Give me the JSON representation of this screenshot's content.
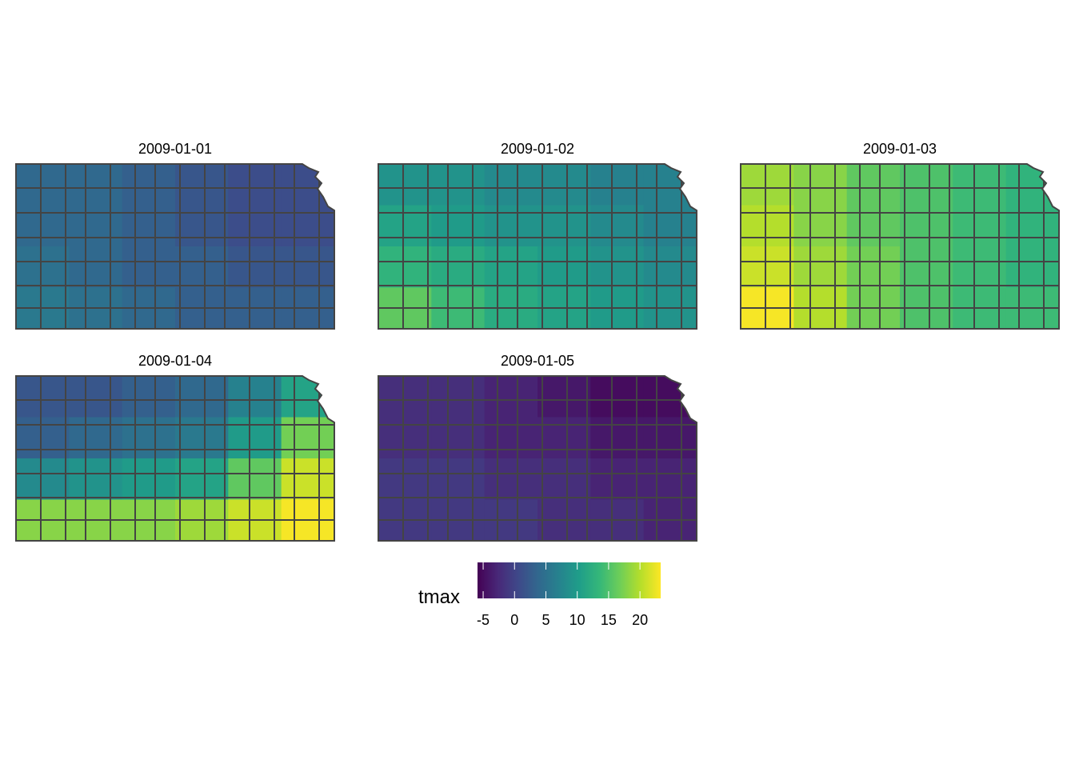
{
  "panels": [
    {
      "title": "2009-01-01",
      "values": [
        [
          4,
          4,
          3,
          2,
          1,
          1
        ],
        [
          4,
          4,
          3,
          2,
          1,
          1
        ],
        [
          5,
          4,
          3,
          3,
          2,
          2
        ],
        [
          6,
          5,
          4,
          3,
          3,
          3
        ]
      ]
    },
    {
      "title": "2009-01-02",
      "values": [
        [
          9,
          9,
          8,
          8,
          7,
          7
        ],
        [
          11,
          10,
          9,
          9,
          8,
          7
        ],
        [
          13,
          12,
          11,
          10,
          9,
          8
        ],
        [
          16,
          14,
          12,
          11,
          10,
          9
        ]
      ]
    },
    {
      "title": "2009-01-03",
      "values": [
        [
          19,
          18,
          16,
          15,
          14,
          13
        ],
        [
          20,
          18,
          16,
          15,
          14,
          13
        ],
        [
          21,
          19,
          17,
          15,
          14,
          13
        ],
        [
          23,
          20,
          17,
          15,
          14,
          14
        ]
      ]
    },
    {
      "title": "2009-01-04",
      "values": [
        [
          2,
          2,
          3,
          4,
          7,
          11
        ],
        [
          3,
          4,
          5,
          6,
          10,
          17
        ],
        [
          8,
          9,
          10,
          11,
          16,
          21
        ],
        [
          18,
          18,
          18,
          19,
          21,
          23
        ]
      ]
    },
    {
      "title": "2009-01-05",
      "values": [
        [
          -2,
          -2,
          -3,
          -4,
          -5,
          -5
        ],
        [
          -2,
          -2,
          -3,
          -3,
          -4,
          -4
        ],
        [
          -1,
          -1,
          -2,
          -2,
          -3,
          -3
        ],
        [
          -1,
          -1,
          -1,
          -2,
          -2,
          -3
        ]
      ]
    }
  ],
  "legend": {
    "title": "tmax",
    "lim": [
      -5.9,
      23.3
    ],
    "ticks": [
      -5,
      0,
      5,
      10,
      15,
      20
    ],
    "palette": [
      "#440154",
      "#482878",
      "#3e4989",
      "#31688e",
      "#26828e",
      "#1f9e89",
      "#35b779",
      "#6ece58",
      "#b5de2b",
      "#fde725"
    ]
  }
}
